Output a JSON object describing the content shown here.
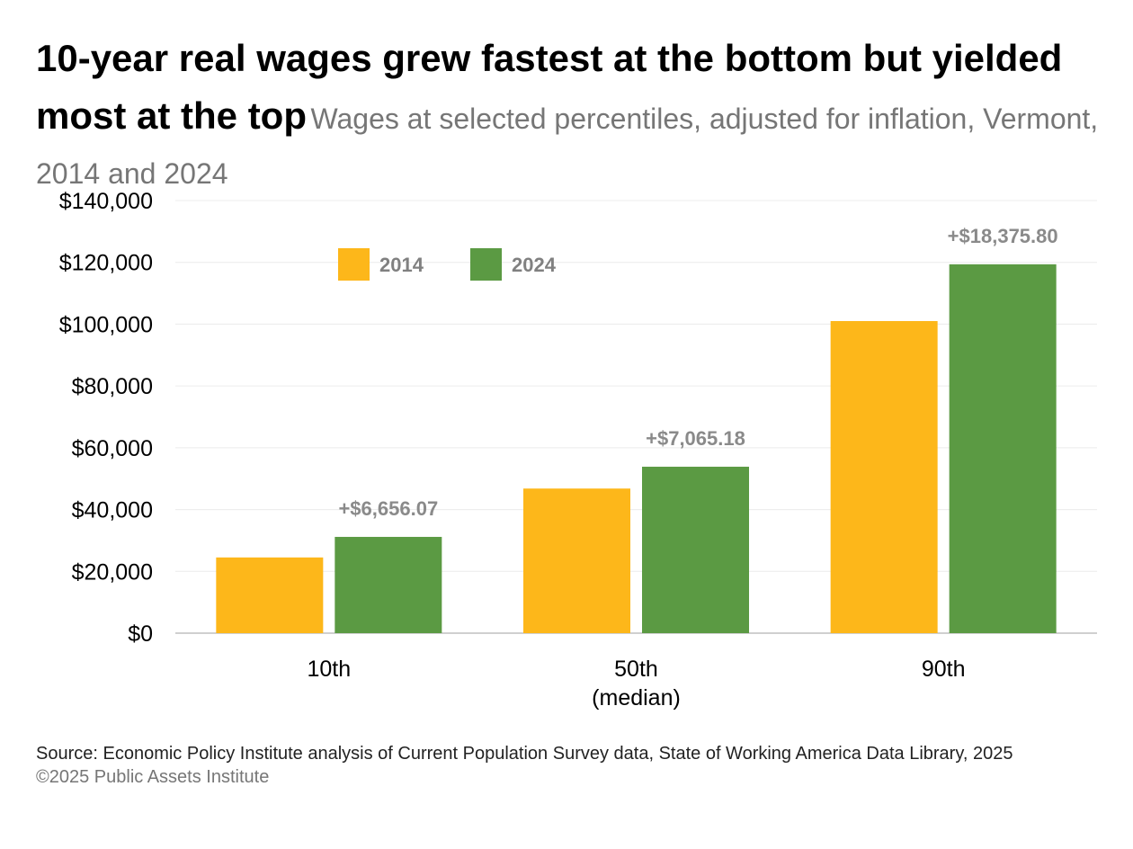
{
  "title": "10-year real wages grew fastest at the bottom but yielded most at the top",
  "subtitle": "Wages at selected percentiles, adjusted for inflation, Vermont, 2014 and 2024",
  "source": "Source: Economic Policy Institute analysis of Current Population Survey data, State of Working America Data Library, 2025",
  "copyright": "©2025 Public Assets Institute",
  "chart_data": {
    "type": "bar",
    "categories": [
      "10th",
      "50th\n(median)",
      "90th"
    ],
    "category_lines": [
      [
        "10th"
      ],
      [
        "50th",
        "(median)"
      ],
      [
        "90th"
      ]
    ],
    "series": [
      {
        "name": "2014",
        "color": "#FDB71A",
        "values": [
          24500,
          46800,
          101000
        ]
      },
      {
        "name": "2024",
        "color": "#5B9A43",
        "values": [
          31156,
          53865,
          119376
        ]
      }
    ],
    "data_labels": [
      "+$6,656.07",
      "+$7,065.18",
      "+$18,375.80"
    ],
    "ylim": [
      0,
      140000
    ],
    "yticks": [
      0,
      20000,
      40000,
      60000,
      80000,
      100000,
      120000,
      140000
    ],
    "ytick_labels": [
      "$0",
      "$20,000",
      "$40,000",
      "$60,000",
      "$80,000",
      "$100,000",
      "$120,000",
      "$140,000"
    ],
    "grid": true,
    "legend_position": "top-left",
    "xlabel": "",
    "ylabel": ""
  }
}
